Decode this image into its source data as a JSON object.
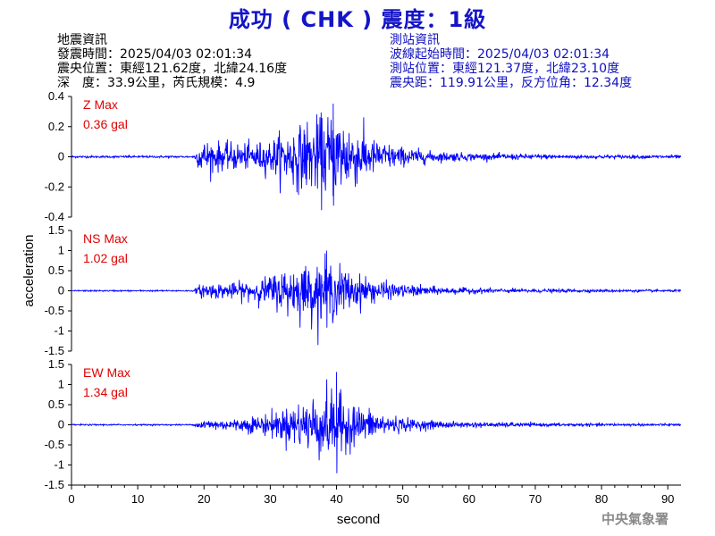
{
  "header": {
    "title": "成功 ( CHK ) 震度：1級"
  },
  "quake_info": {
    "heading": "地震資訊",
    "origin_time": "發震時間：2025/04/03 02:01:34",
    "epicenter": "震央位置：東經121.62度，北緯24.16度",
    "depth_magnitude": "深　度：33.9公里，芮氏規模：4.9"
  },
  "station_info": {
    "heading": "測站資訊",
    "wave_onset": "波線起始時間：2025/04/03 02:01:34",
    "station_location": "測站位置：東經121.37度，北緯23.10度",
    "distance_azimuth": "震央距：119.91公里，反方位角：12.34度"
  },
  "footer": {
    "credit": "中央氣象署"
  },
  "colors": {
    "title": "#1414c8",
    "trace": "#0000ff",
    "max_label": "#e00000",
    "station_info": "#1010c0",
    "credit": "#8a8a8a"
  },
  "chart_data": {
    "type": "line",
    "xlabel": "second",
    "ylabel": "acceleration",
    "xlim": [
      0,
      92
    ],
    "x_ticks": [
      0,
      10,
      20,
      30,
      40,
      50,
      60,
      70,
      80,
      90
    ],
    "grid": false,
    "panels": [
      {
        "component": "Z",
        "max_label": "Z Max",
        "max_value": "0.36 gal",
        "ylim": [
          -0.4,
          0.4
        ],
        "y_ticks": [
          -0.4,
          -0.2,
          0,
          0.2,
          0.4
        ],
        "y_tick_labels": [
          "-0.4",
          "-0.2",
          "0",
          "0.2",
          "0.4"
        ],
        "peak": 0.36,
        "peak_time": 39.5,
        "noise": 0.008,
        "onset": 18.8,
        "envelope": [
          [
            0,
            0.008
          ],
          [
            18.5,
            0.008
          ],
          [
            19.5,
            0.12
          ],
          [
            22,
            0.11
          ],
          [
            26,
            0.1
          ],
          [
            30,
            0.12
          ],
          [
            33,
            0.22
          ],
          [
            37,
            0.3
          ],
          [
            40,
            0.34
          ],
          [
            43,
            0.22
          ],
          [
            46,
            0.12
          ],
          [
            50,
            0.07
          ],
          [
            55,
            0.04
          ],
          [
            62,
            0.025
          ],
          [
            75,
            0.015
          ],
          [
            92,
            0.012
          ]
        ]
      },
      {
        "component": "NS",
        "max_label": "NS Max",
        "max_value": "1.02 gal",
        "ylim": [
          -1.5,
          1.5
        ],
        "y_ticks": [
          -1.5,
          -1,
          -0.5,
          0,
          0.5,
          1,
          1.5
        ],
        "y_tick_labels": [
          "-1.5",
          "-1",
          "-0.5",
          "0",
          "0.5",
          "1",
          "1.5"
        ],
        "peak": 1.02,
        "peak_time": 38.5,
        "noise": 0.02,
        "onset": 19.0,
        "envelope": [
          [
            0,
            0.02
          ],
          [
            18.5,
            0.02
          ],
          [
            19.5,
            0.2
          ],
          [
            24,
            0.22
          ],
          [
            28,
            0.3
          ],
          [
            32,
            0.6
          ],
          [
            36,
            0.8
          ],
          [
            39,
            0.85
          ],
          [
            42,
            0.55
          ],
          [
            46,
            0.3
          ],
          [
            50,
            0.18
          ],
          [
            56,
            0.1
          ],
          [
            65,
            0.06
          ],
          [
            80,
            0.04
          ],
          [
            92,
            0.03
          ]
        ]
      },
      {
        "component": "EW",
        "max_label": "EW Max",
        "max_value": "1.34 gal",
        "ylim": [
          -1.5,
          1.5
        ],
        "y_ticks": [
          -1.5,
          -1,
          -0.5,
          0,
          0.5,
          1,
          1.5
        ],
        "y_tick_labels": [
          "-1.5",
          "-1",
          "-0.5",
          "0",
          "0.5",
          "1",
          "1.5"
        ],
        "peak": 1.34,
        "peak_time": 40.0,
        "noise": 0.02,
        "onset": 19.0,
        "envelope": [
          [
            0,
            0.02
          ],
          [
            18.5,
            0.02
          ],
          [
            19.5,
            0.15
          ],
          [
            24,
            0.15
          ],
          [
            28,
            0.25
          ],
          [
            32,
            0.45
          ],
          [
            35,
            0.7
          ],
          [
            38,
            0.95
          ],
          [
            40,
            1.0
          ],
          [
            43,
            0.55
          ],
          [
            47,
            0.3
          ],
          [
            52,
            0.15
          ],
          [
            58,
            0.08
          ],
          [
            70,
            0.05
          ],
          [
            92,
            0.03
          ]
        ]
      }
    ],
    "x_tick_labels": [
      "0",
      "10",
      "20",
      "30",
      "40",
      "50",
      "60",
      "70",
      "80",
      "90"
    ]
  }
}
